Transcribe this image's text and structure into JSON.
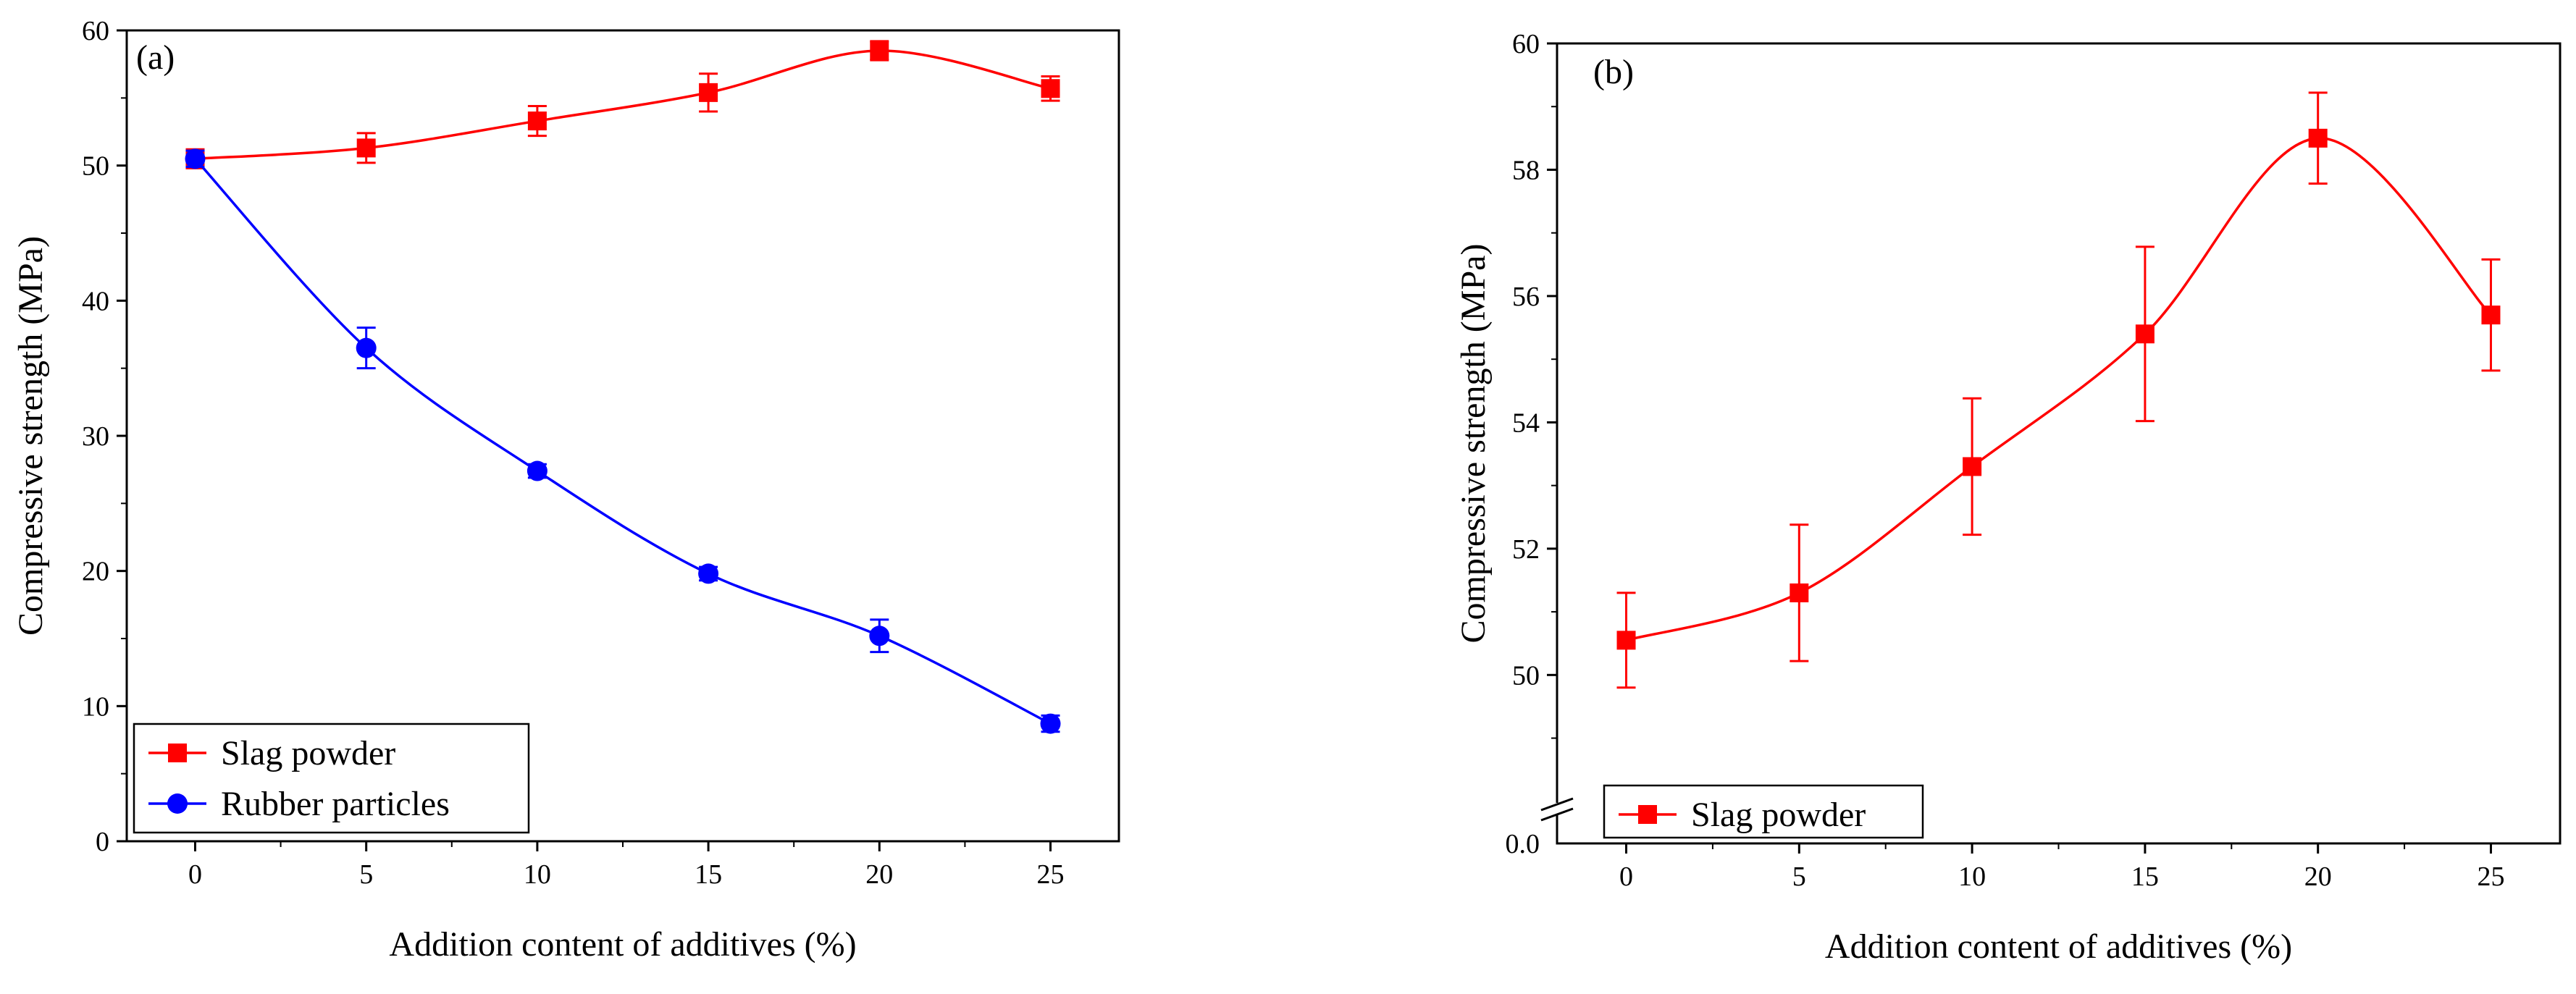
{
  "figure": {
    "panels": [
      "(a)",
      "(b)"
    ]
  },
  "chart_data": [
    {
      "type": "line",
      "panel_label": "(a)",
      "xlabel": "Addition content of additives (%)",
      "ylabel": "Compressive strength (MPa)",
      "x": [
        0,
        5,
        10,
        15,
        20,
        25
      ],
      "xticks": [
        "0",
        "5",
        "10",
        "15",
        "20",
        "25"
      ],
      "yticks": [
        "0",
        "10",
        "20",
        "30",
        "40",
        "50",
        "60"
      ],
      "xlim": [
        -2,
        27
      ],
      "ylim": [
        0,
        60
      ],
      "legend_position": "bottom-left",
      "series": [
        {
          "name": "Slag powder",
          "color": "#ff0000",
          "marker": "square",
          "values": [
            50.5,
            51.3,
            53.3,
            55.4,
            58.5,
            55.7
          ],
          "errors": [
            0.7,
            1.1,
            1.1,
            1.4,
            0.7,
            0.9
          ]
        },
        {
          "name": "Rubber particles",
          "color": "#0000ff",
          "marker": "circle",
          "values": [
            50.5,
            36.5,
            27.4,
            19.8,
            15.2,
            8.7
          ],
          "errors": [
            0.6,
            1.5,
            0.5,
            0.5,
            1.2,
            0.6
          ]
        }
      ]
    },
    {
      "type": "line",
      "panel_label": "(b)",
      "xlabel": "Addition content of additives (%)",
      "ylabel": "Compressive strength (MPa)",
      "x": [
        0,
        5,
        10,
        15,
        20,
        25
      ],
      "xticks": [
        "0",
        "5",
        "10",
        "15",
        "20",
        "25"
      ],
      "yticks": [
        "50",
        "52",
        "54",
        "56",
        "58",
        "60"
      ],
      "ybreak_tick": "0.0",
      "xlim": [
        -2,
        27
      ],
      "ylim": [
        48.25,
        60
      ],
      "legend_position": "bottom-left",
      "series": [
        {
          "name": "Slag powder",
          "color": "#ff0000",
          "marker": "square",
          "values": [
            50.55,
            51.3,
            53.3,
            55.4,
            58.5,
            55.7
          ],
          "errors": [
            0.75,
            1.08,
            1.08,
            1.38,
            0.72,
            0.88
          ]
        }
      ]
    }
  ]
}
